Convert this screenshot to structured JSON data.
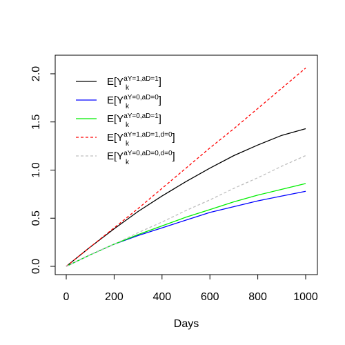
{
  "chart_data": {
    "type": "line",
    "title": "",
    "xlabel": "Days",
    "ylabel": "",
    "xlim": [
      0,
      1000
    ],
    "ylim": [
      0,
      2.1
    ],
    "xticks": [
      "0",
      "200",
      "400",
      "600",
      "800",
      "1000"
    ],
    "xtick_values": [
      0,
      200,
      400,
      600,
      800,
      1000
    ],
    "yticks": [
      "0.0",
      "0.5",
      "1.0",
      "1.5",
      "2.0"
    ],
    "ytick_values": [
      0.0,
      0.5,
      1.0,
      1.5,
      2.0
    ],
    "grid": false,
    "legend_position": "top-left",
    "x": [
      0,
      100,
      200,
      300,
      400,
      500,
      600,
      700,
      800,
      900,
      1000
    ],
    "series": [
      {
        "legend_main": "E[Y",
        "legend_sup": "aY=1,aD=1",
        "legend_sub": "k",
        "legend_close": "]",
        "color": "#000000",
        "dash": "solid",
        "values": [
          0.0,
          0.2,
          0.39,
          0.57,
          0.73,
          0.88,
          1.02,
          1.15,
          1.26,
          1.36,
          1.43
        ]
      },
      {
        "legend_main": "E[Y",
        "legend_sup": "aY=0,aD=0",
        "legend_sub": "k",
        "legend_close": "]",
        "color": "#0000ff",
        "dash": "solid",
        "values": [
          0.0,
          0.12,
          0.23,
          0.32,
          0.4,
          0.48,
          0.56,
          0.62,
          0.68,
          0.73,
          0.78
        ]
      },
      {
        "legend_main": "E[Y",
        "legend_sup": "aY=0,aD=1",
        "legend_sub": "k",
        "legend_close": "]",
        "color": "#00ee00",
        "dash": "solid",
        "values": [
          0.0,
          0.12,
          0.23,
          0.33,
          0.42,
          0.51,
          0.59,
          0.67,
          0.74,
          0.8,
          0.86
        ]
      },
      {
        "legend_main": "E[Y",
        "legend_sup": "aY=1,aD=1,d=0",
        "legend_sub": "k",
        "legend_close": "]",
        "color": "#ff0000",
        "dash": "dashed",
        "values": [
          0.0,
          0.2,
          0.4,
          0.6,
          0.81,
          1.02,
          1.23,
          1.43,
          1.64,
          1.85,
          2.06
        ]
      },
      {
        "legend_main": "E[Y",
        "legend_sup": "aY=0,aD=0,d=0",
        "legend_sub": "k",
        "legend_close": "]",
        "color": "#bebebe",
        "dash": "dashed",
        "values": [
          0.0,
          0.12,
          0.23,
          0.35,
          0.46,
          0.58,
          0.69,
          0.81,
          0.92,
          1.04,
          1.15
        ]
      }
    ]
  }
}
